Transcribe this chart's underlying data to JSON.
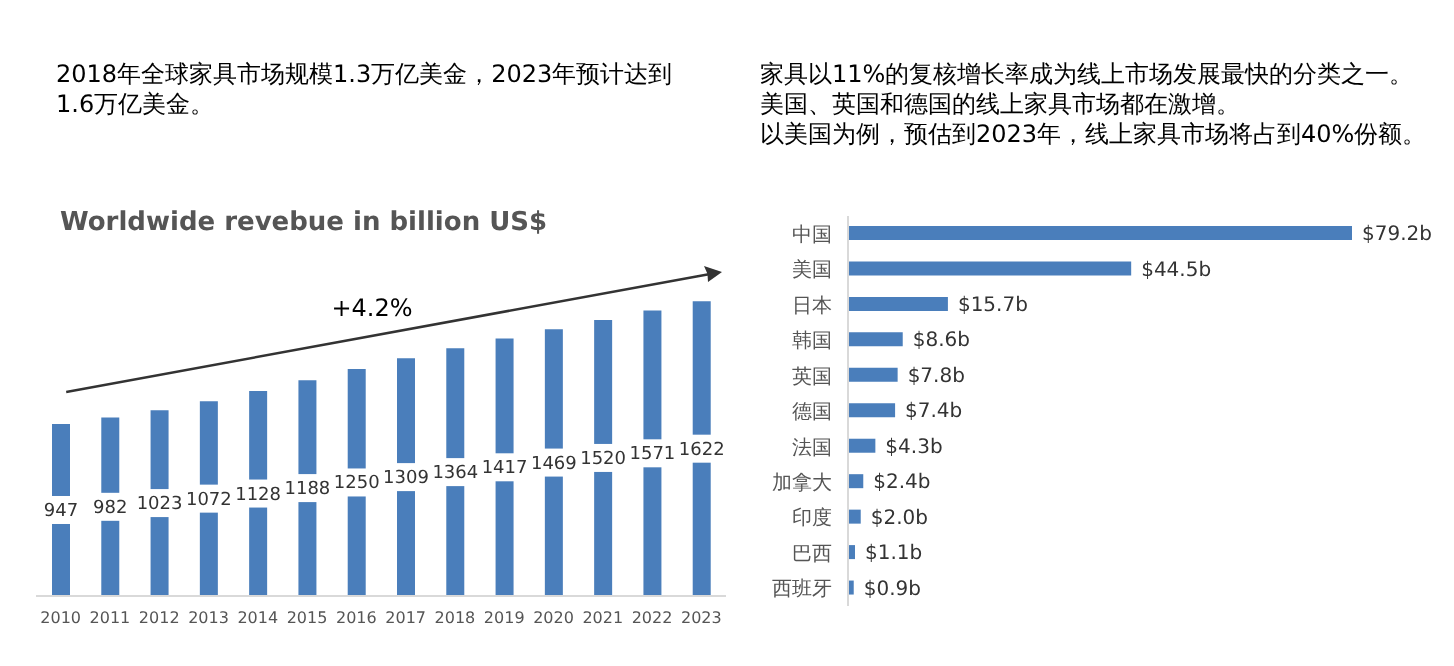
{
  "chart_data": [
    {
      "type": "bar",
      "title": "2018年全球家具市场规模1.3万亿美金，2023年预计达到1.6万亿美金。",
      "subtitle": "Worldwide revebue in billion US$",
      "categories": [
        "2010",
        "2011",
        "2012",
        "2013",
        "2014",
        "2015",
        "2016",
        "2017",
        "2018",
        "2019",
        "2020",
        "2021",
        "2022",
        "2023"
      ],
      "values": [
        947,
        982,
        1023,
        1072,
        1128,
        1188,
        1250,
        1309,
        1364,
        1417,
        1469,
        1520,
        1571,
        1622
      ],
      "color": "#4a7ebb",
      "data_labels": true,
      "annotations": [
        "+4.2%"
      ]
    },
    {
      "type": "bar",
      "orientation": "horizontal",
      "title": "家具以11%的复核增长率成为线上市场发展最快的分类之一。",
      "annotations": [
        "美国、英国和德国的线上家具市场都在激增。",
        "以美国为例，预估到2023年，线上家具市场将占到40%份额。"
      ],
      "categories": [
        "中国",
        "美国",
        "日本",
        "韩国",
        "英国",
        "德国",
        "法国",
        "加拿大",
        "印度",
        "巴西",
        "西班牙"
      ],
      "values": [
        79.2,
        44.5,
        15.7,
        8.6,
        7.8,
        7.4,
        4.3,
        2.4,
        2.0,
        1.1,
        0.9
      ],
      "value_labels": [
        "$79.2b",
        "$44.5b",
        "$15.7b",
        "$8.6b",
        "$7.8b",
        "$7.4b",
        "$4.3b",
        "$2.4b",
        "$2.0b",
        "$1.1b",
        "$0.9b"
      ],
      "color": "#4a7ebb"
    }
  ]
}
